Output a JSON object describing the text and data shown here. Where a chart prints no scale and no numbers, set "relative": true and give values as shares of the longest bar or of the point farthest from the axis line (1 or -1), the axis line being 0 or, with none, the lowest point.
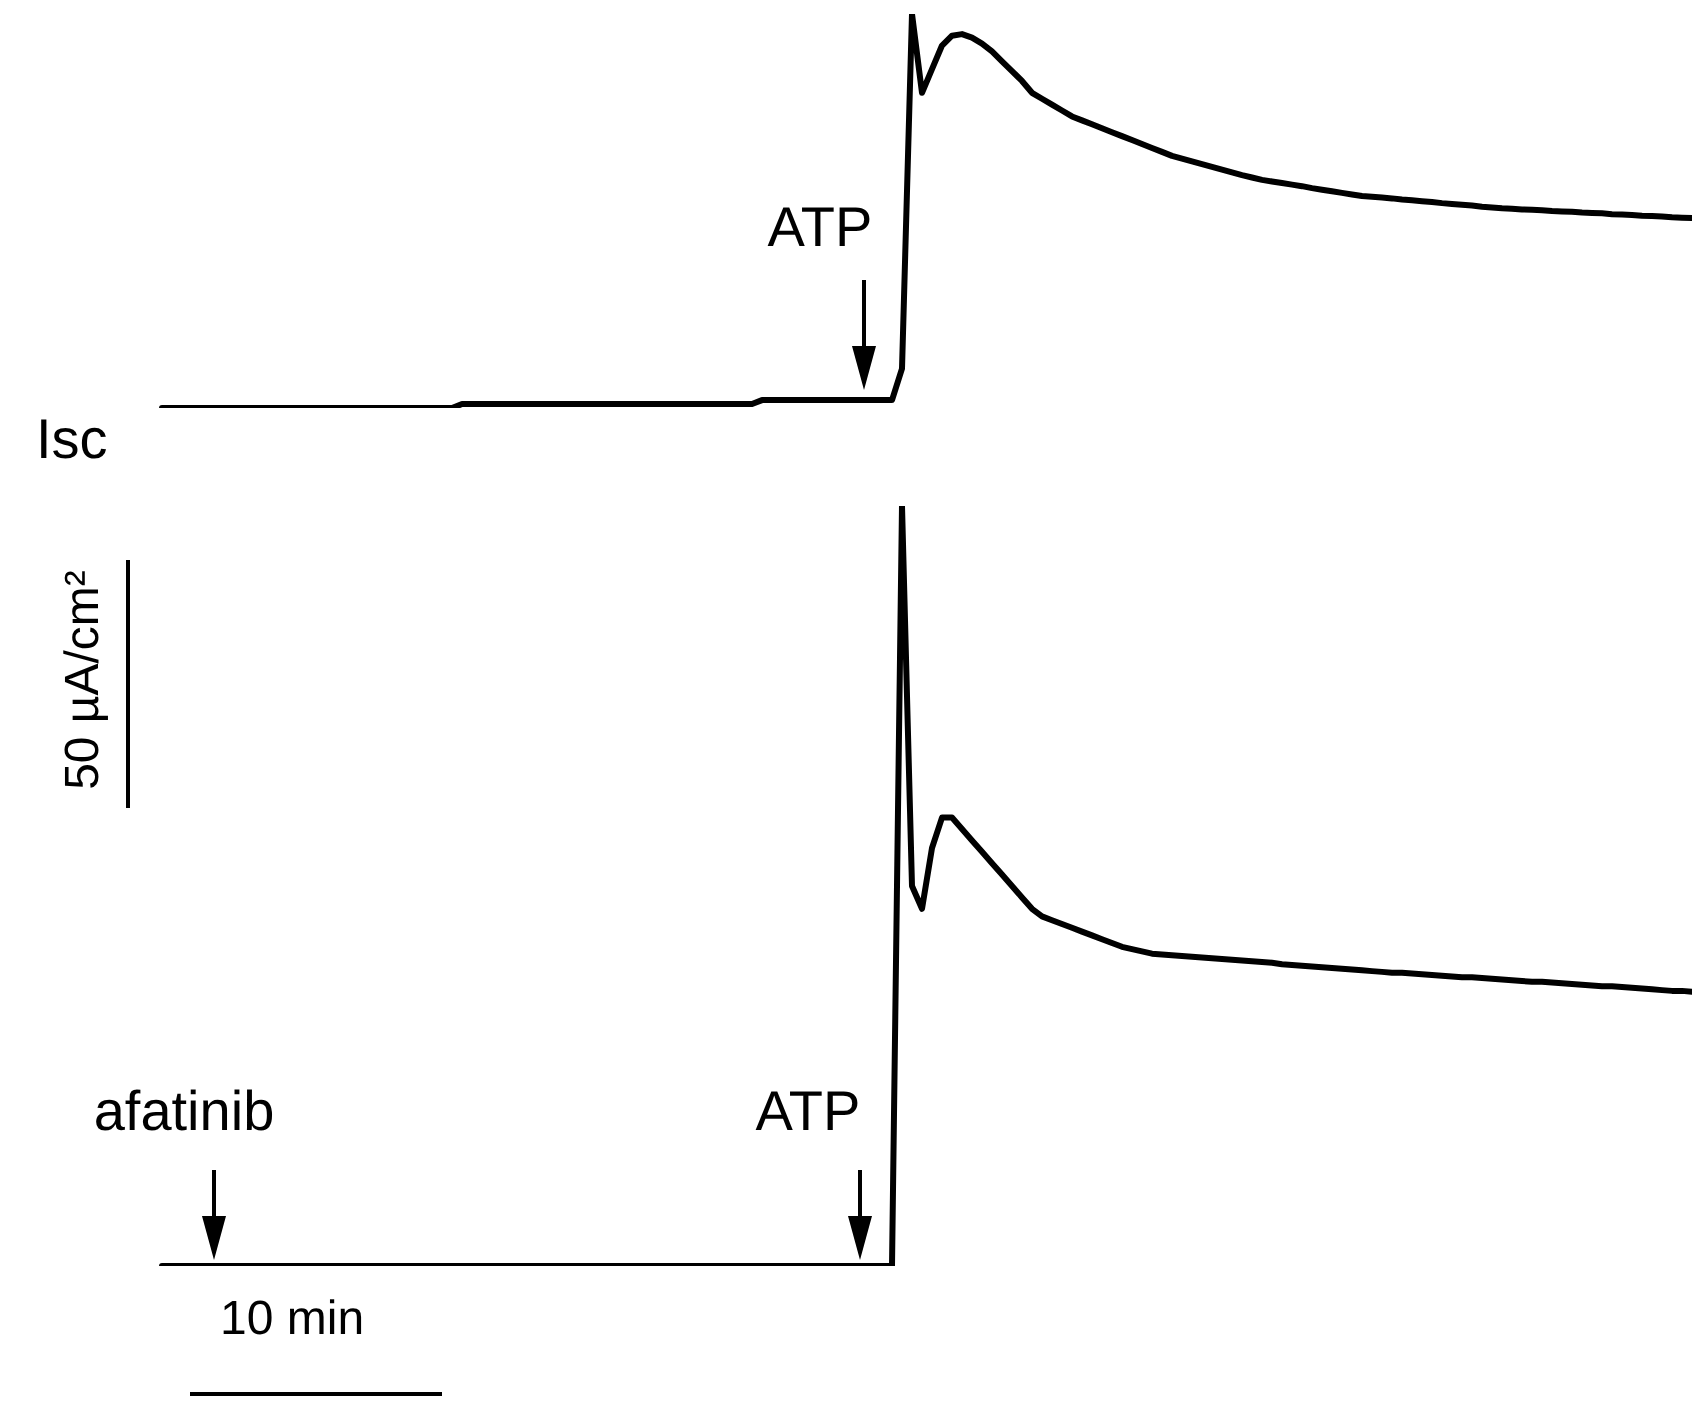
{
  "chart_data": [
    {
      "type": "line",
      "relative": true,
      "tick_labels": false,
      "marker": "none",
      "categories": [
        null,
        null,
        null,
        null,
        null,
        null,
        null,
        null,
        null,
        null,
        null,
        null,
        null,
        null,
        null,
        null,
        null,
        null,
        null,
        null,
        null,
        null,
        null,
        null,
        null,
        null,
        null,
        null,
        null,
        null,
        null,
        null,
        null,
        null,
        null,
        null,
        null,
        null,
        null,
        null,
        null,
        null,
        null,
        null,
        null,
        null,
        null,
        null,
        null,
        null,
        null,
        null,
        null,
        null,
        null,
        null,
        null,
        null,
        null,
        null,
        null,
        null,
        null,
        null,
        null,
        null,
        null,
        null,
        null,
        null,
        null,
        null,
        null,
        null,
        null,
        null,
        null,
        null,
        null,
        null,
        null,
        null,
        null,
        null,
        null,
        null,
        null,
        null,
        null,
        null,
        null,
        null,
        null,
        null,
        null,
        null,
        null,
        null,
        null,
        null,
        null,
        null,
        null,
        null,
        null,
        null,
        null,
        null,
        null,
        null,
        null,
        null,
        null,
        null,
        null,
        null,
        null,
        null,
        null,
        null,
        null,
        null,
        null,
        null,
        null,
        null,
        null,
        null,
        null,
        null,
        null,
        null,
        null,
        null,
        null,
        null,
        null,
        null,
        null,
        null,
        null,
        null,
        null,
        null,
        null,
        null,
        null,
        null,
        null,
        null,
        null,
        null,
        null,
        null
      ],
      "series": [
        {
          "color": "#000000",
          "values": [
            0,
            0,
            0,
            0,
            0,
            0,
            0,
            0,
            0,
            0,
            0,
            0,
            0,
            0,
            0,
            0,
            0,
            0,
            0,
            0,
            0,
            0,
            0,
            0,
            0,
            0,
            0,
            0,
            0,
            0,
            0.01,
            0.01,
            0.01,
            0.01,
            0.01,
            0.01,
            0.01,
            0.01,
            0.01,
            0.01,
            0.01,
            0.01,
            0.01,
            0.01,
            0.01,
            0.01,
            0.01,
            0.01,
            0.01,
            0.01,
            0.01,
            0.01,
            0.01,
            0.01,
            0.01,
            0.01,
            0.01,
            0.01,
            0.01,
            0.01,
            0.02,
            0.02,
            0.02,
            0.02,
            0.02,
            0.02,
            0.02,
            0.02,
            0.02,
            0.02,
            0.02,
            0.02,
            0.02,
            0.02,
            0.1,
            1,
            0.8,
            0.86,
            0.92,
            0.945,
            0.949,
            0.94,
            0.925,
            0.905,
            0.88,
            0.855,
            0.83,
            0.8,
            0.785,
            0.77,
            0.755,
            0.74,
            0.73,
            0.72,
            0.71,
            0.7,
            0.69,
            0.68,
            0.67,
            0.66,
            0.65,
            0.64,
            0.633,
            0.626,
            0.619,
            0.612,
            0.605,
            0.598,
            0.591,
            0.585,
            0.579,
            0.575,
            0.571,
            0.567,
            0.563,
            0.558,
            0.554,
            0.55,
            0.546,
            0.542,
            0.538,
            0.536,
            0.534,
            0.532,
            0.529,
            0.527,
            0.525,
            0.523,
            0.52,
            0.518,
            0.516,
            0.514,
            0.511,
            0.509,
            0.507,
            0.506,
            0.504,
            0.503,
            0.502,
            0.5,
            0.499,
            0.498,
            0.496,
            0.495,
            0.494,
            0.492,
            0.491,
            0.49,
            0.488,
            0.487,
            0.486,
            0.484,
            0.483,
            0.482
          ]
        }
      ],
      "annotations": [
        "Isc",
        "ATP"
      ]
    },
    {
      "type": "line",
      "relative": true,
      "tick_labels": false,
      "marker": "none",
      "categories": [
        null,
        null,
        null,
        null,
        null,
        null,
        null,
        null,
        null,
        null,
        null,
        null,
        null,
        null,
        null,
        null,
        null,
        null,
        null,
        null,
        null,
        null,
        null,
        null,
        null,
        null,
        null,
        null,
        null,
        null,
        null,
        null,
        null,
        null,
        null,
        null,
        null,
        null,
        null,
        null,
        null,
        null,
        null,
        null,
        null,
        null,
        null,
        null,
        null,
        null,
        null,
        null,
        null,
        null,
        null,
        null,
        null,
        null,
        null,
        null,
        null,
        null,
        null,
        null,
        null,
        null,
        null,
        null,
        null,
        null,
        null,
        null,
        null,
        null,
        null,
        null,
        null,
        null,
        null,
        null,
        null,
        null,
        null,
        null,
        null,
        null,
        null,
        null,
        null,
        null,
        null,
        null,
        null,
        null,
        null,
        null,
        null,
        null,
        null,
        null,
        null,
        null,
        null,
        null,
        null,
        null,
        null,
        null,
        null,
        null,
        null,
        null,
        null,
        null,
        null,
        null,
        null,
        null,
        null,
        null,
        null,
        null,
        null,
        null,
        null,
        null,
        null,
        null,
        null,
        null,
        null,
        null,
        null,
        null,
        null,
        null,
        null,
        null,
        null,
        null,
        null,
        null,
        null,
        null,
        null,
        null,
        null,
        null,
        null,
        null,
        null,
        null,
        null,
        null
      ],
      "series": [
        {
          "color": "#000000",
          "values": [
            0,
            0,
            0,
            0,
            0,
            0,
            0,
            0,
            0,
            0,
            0,
            0,
            0,
            0,
            0,
            0,
            0,
            0,
            0,
            0,
            0,
            0,
            0,
            0,
            0,
            0,
            0,
            0,
            0,
            0,
            0,
            0,
            0,
            0,
            0,
            0,
            0,
            0,
            0,
            0,
            0,
            0,
            0,
            0,
            0,
            0,
            0,
            0,
            0,
            0,
            0,
            0,
            0,
            0,
            0,
            0,
            0,
            0,
            0,
            0,
            0,
            0,
            0,
            0,
            0,
            0,
            0,
            0,
            0,
            0,
            0,
            0,
            0,
            0,
            1,
            0.5,
            0.47,
            0.55,
            0.59,
            0.59,
            0.575,
            0.56,
            0.545,
            0.53,
            0.515,
            0.5,
            0.485,
            0.47,
            0.46,
            0.455,
            0.45,
            0.445,
            0.44,
            0.435,
            0.43,
            0.425,
            0.42,
            0.417,
            0.414,
            0.411,
            0.41,
            0.409,
            0.408,
            0.407,
            0.406,
            0.405,
            0.404,
            0.403,
            0.402,
            0.401,
            0.4,
            0.399,
            0.397,
            0.396,
            0.395,
            0.394,
            0.393,
            0.392,
            0.391,
            0.39,
            0.389,
            0.388,
            0.387,
            0.386,
            0.386,
            0.385,
            0.384,
            0.383,
            0.382,
            0.381,
            0.38,
            0.38,
            0.379,
            0.378,
            0.377,
            0.376,
            0.375,
            0.374,
            0.374,
            0.373,
            0.372,
            0.371,
            0.37,
            0.369,
            0.368,
            0.368,
            0.367,
            0.366,
            0.365,
            0.364,
            0.363,
            0.362,
            0.362,
            0.361
          ]
        }
      ],
      "annotations": [
        "50 µA/cm²",
        "10 min",
        "afatinib",
        "ATP"
      ]
    }
  ]
}
